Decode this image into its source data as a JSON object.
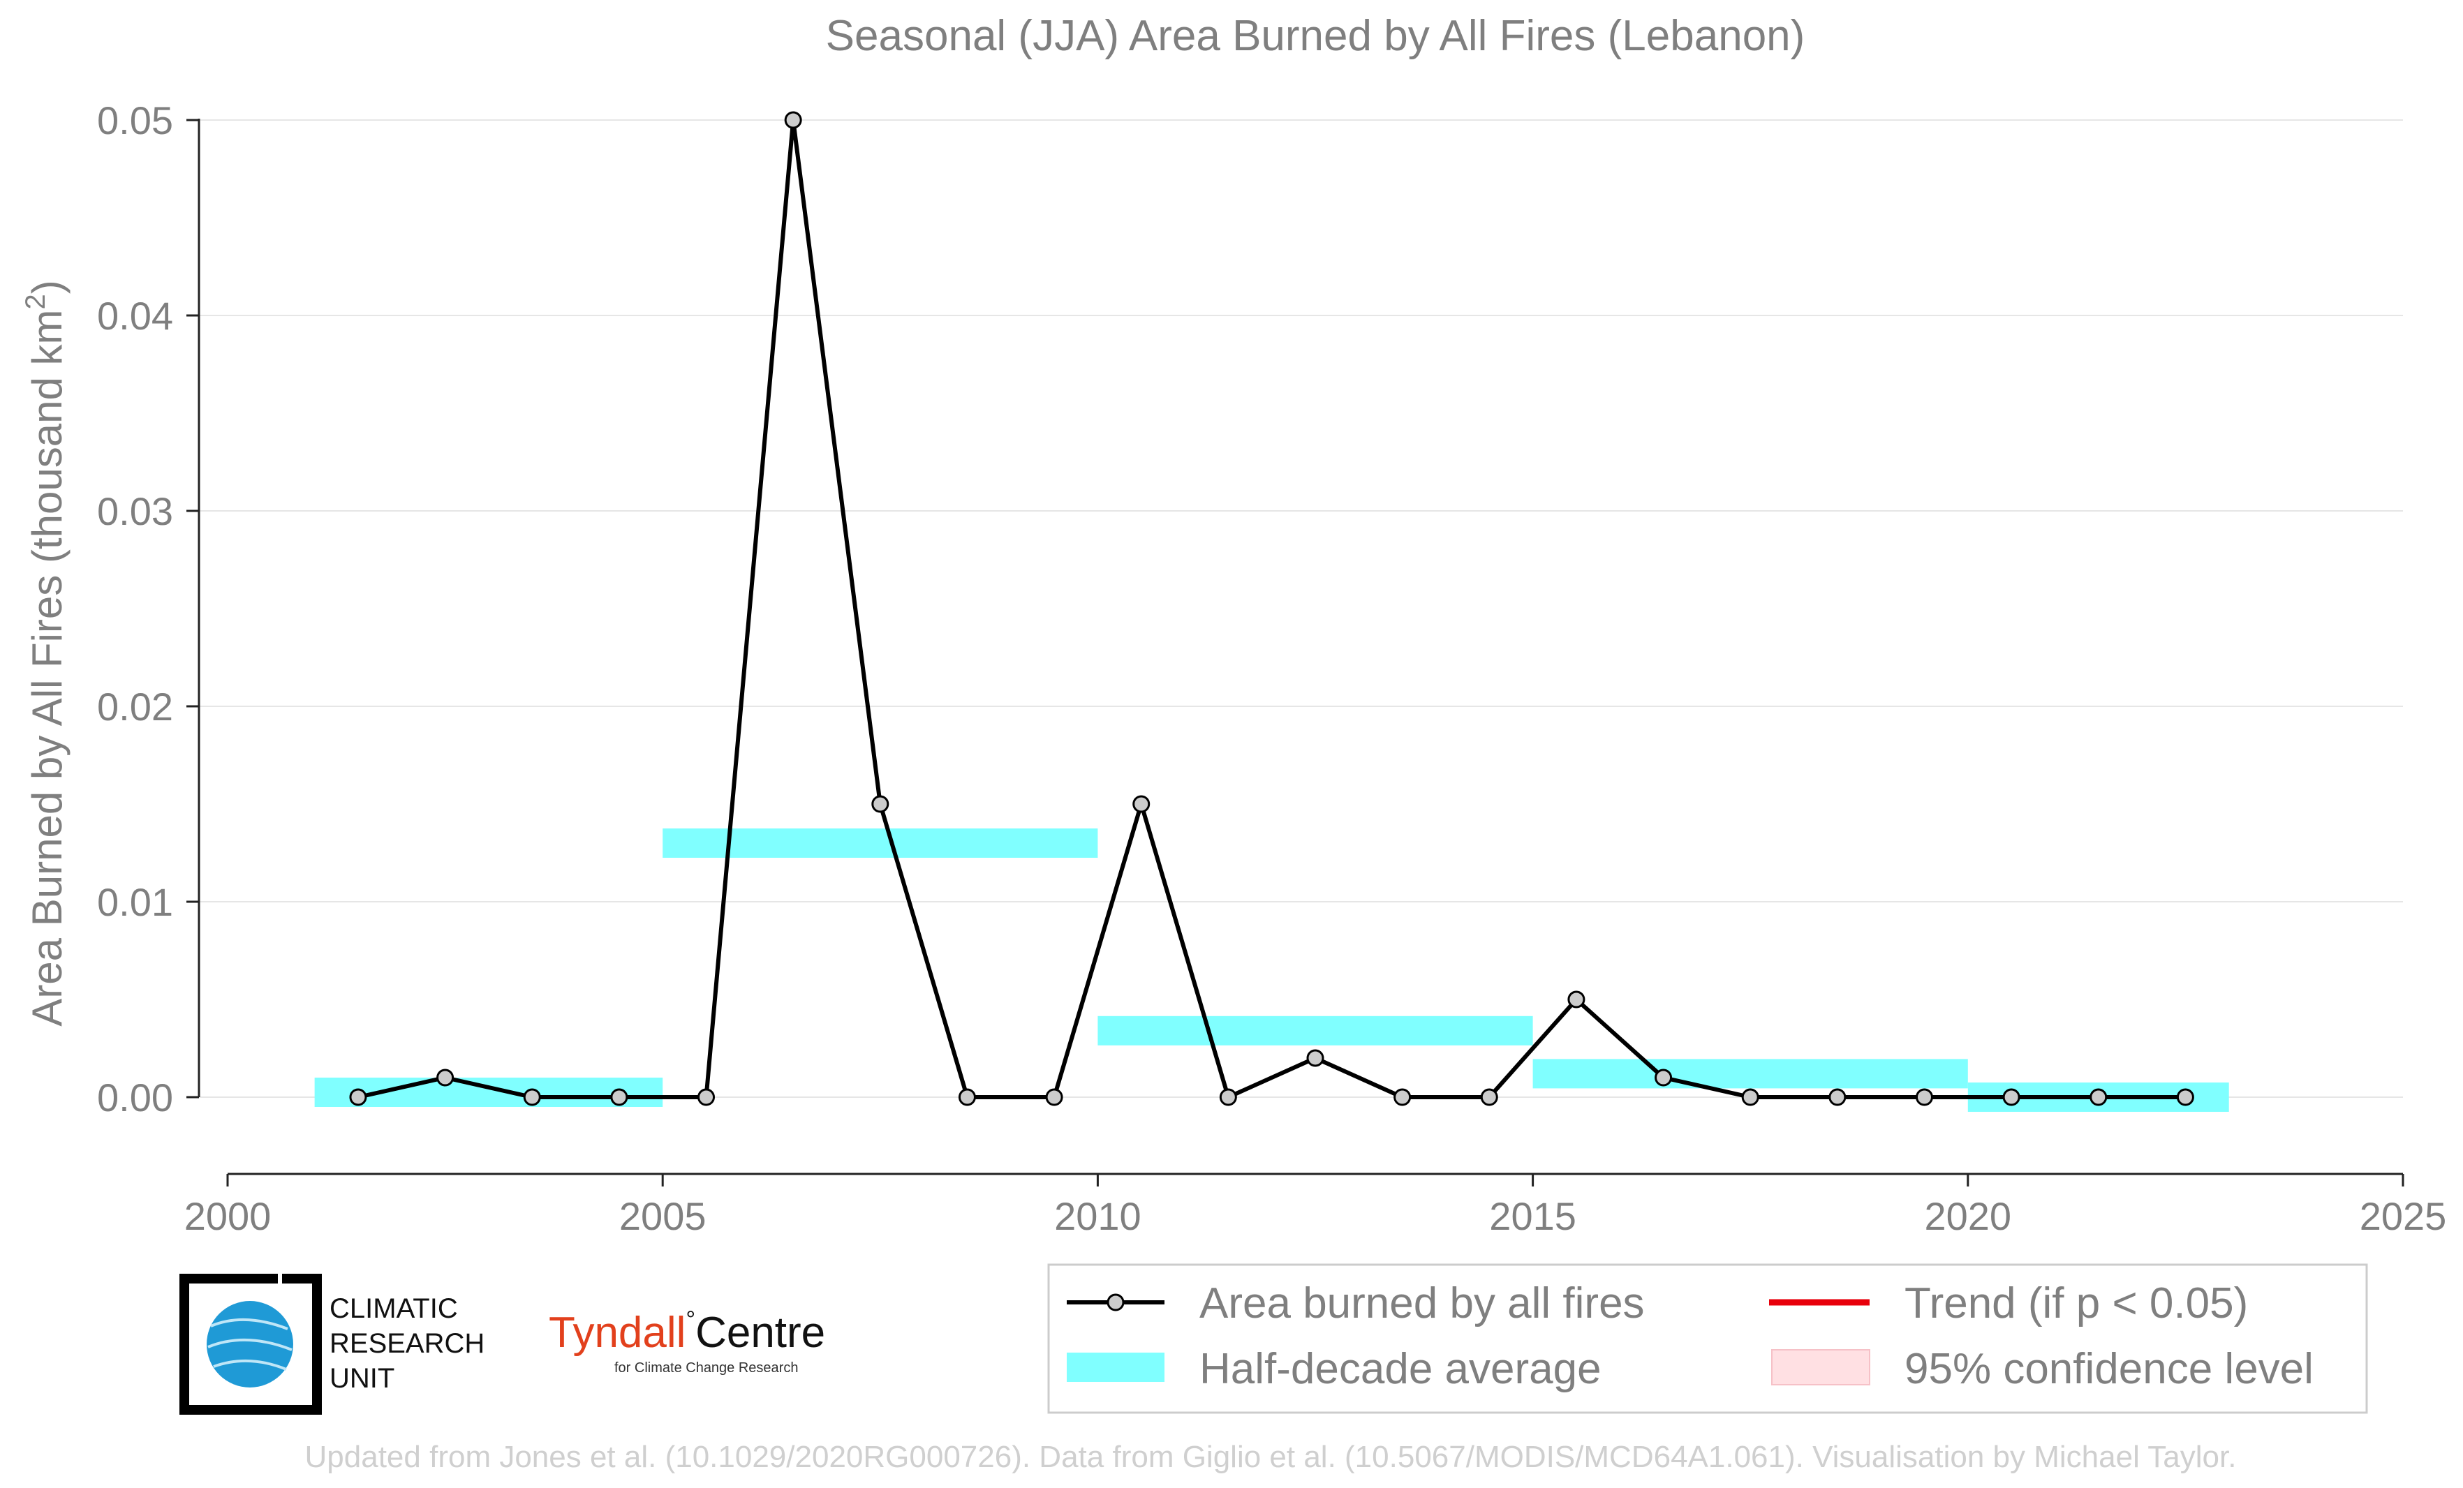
{
  "chart_data": {
    "type": "line",
    "title": "Seasonal (JJA) Area Burned by All Fires (Lebanon)",
    "ylabel": "Area Burned by All Fires (thousand km",
    "ylabel_sup": "2",
    "ylabel_end": ")",
    "xlim": [
      2000,
      2025
    ],
    "ylim": [
      -0.004,
      0.05
    ],
    "x_ticks": [
      2000,
      2005,
      2010,
      2015,
      2020,
      2025
    ],
    "x_tick_labels": [
      "2000",
      "2005",
      "2010",
      "2015",
      "2020",
      "2025"
    ],
    "y_ticks": [
      0,
      0.01,
      0.02,
      0.03,
      0.04,
      0.05
    ],
    "y_tick_labels": [
      "0.00",
      "0.01",
      "0.02",
      "0.03",
      "0.04",
      "0.05"
    ],
    "grid": "horizontal",
    "series": [
      {
        "name": "Area burned by all fires",
        "x": [
          2001.5,
          2002.5,
          2003.5,
          2004.5,
          2005.5,
          2006.5,
          2007.5,
          2008.5,
          2009.5,
          2010.5,
          2011.5,
          2012.5,
          2013.5,
          2014.5,
          2015.5,
          2016.5,
          2017.5,
          2018.5,
          2019.5,
          2020.5,
          2021.5,
          2022.5
        ],
        "values": [
          0,
          0.001,
          0,
          0,
          0,
          0.05,
          0.015,
          0,
          0,
          0.015,
          0,
          0.002,
          0,
          0,
          0.005,
          0.001,
          0,
          0,
          0,
          0,
          0,
          0
        ],
        "color": "#000000",
        "marker_fill": "#cccccc"
      }
    ],
    "half_decade_average": {
      "name": "Half-decade average",
      "color": "#80ffff",
      "bands": [
        {
          "x0": 2001,
          "x1": 2005,
          "value": 0.00025
        },
        {
          "x0": 2005,
          "x1": 2010,
          "value": 0.013
        },
        {
          "x0": 2010,
          "x1": 2015,
          "value": 0.0034
        },
        {
          "x0": 2015,
          "x1": 2020,
          "value": 0.0012
        },
        {
          "x0": 2020,
          "x1": 2023,
          "value": 0.0
        }
      ]
    },
    "legend": {
      "position": "bottom-right",
      "items": [
        {
          "label": "Area burned by all fires",
          "kind": "line-marker",
          "color": "#000000"
        },
        {
          "label": "Trend (if p < 0.05)",
          "kind": "line",
          "color": "#e8000b"
        },
        {
          "label": "Half-decade average",
          "kind": "band",
          "color": "#80ffff"
        },
        {
          "label": "95% confidence level",
          "kind": "patch",
          "color": "#ffe0e3"
        }
      ]
    }
  },
  "logos": {
    "cru_lines": [
      "CLIMATIC",
      "RESEARCH",
      "UNIT"
    ],
    "tyndall_name": "Tyndall",
    "tyndall_centre": "Centre",
    "tyndall_sub": "for Climate Change Research",
    "tyndall_color": "#e2401c"
  },
  "credit": "Updated from Jones et al. (10.1029/2020RG000726). Data from Giglio et al. (10.5067/MODIS/MCD64A1.061). Visualisation by Michael Taylor."
}
